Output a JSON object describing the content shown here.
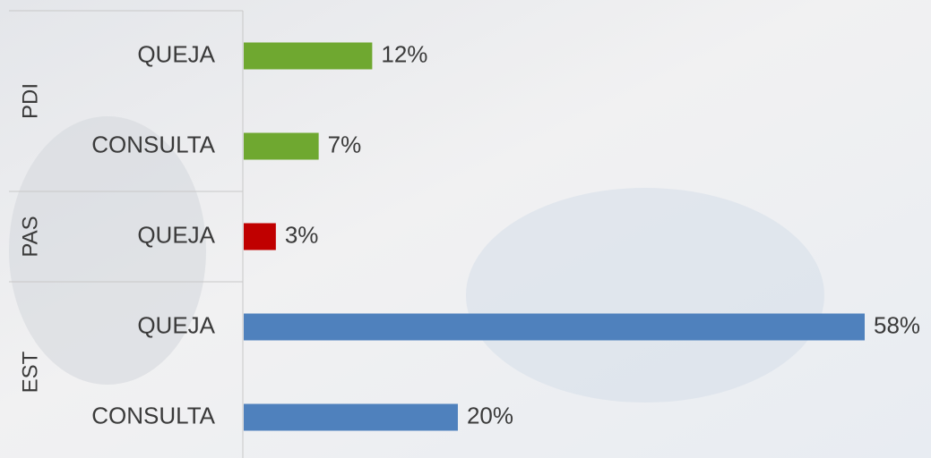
{
  "chart_data": {
    "type": "bar",
    "groups": [
      {
        "name": "PDI",
        "color": "#6fa830",
        "categories": [
          "QUEJA",
          "CONSULTA"
        ],
        "values": [
          12,
          7
        ],
        "value_labels": [
          "12%",
          "7%"
        ]
      },
      {
        "name": "PAS",
        "color": "#c00000",
        "categories": [
          "QUEJA"
        ],
        "values": [
          3
        ],
        "value_labels": [
          "3%"
        ]
      },
      {
        "name": "EST",
        "color": "#4f81bd",
        "categories": [
          "QUEJA",
          "CONSULTA"
        ],
        "values": [
          58,
          20
        ],
        "value_labels": [
          "58%",
          "20%"
        ]
      }
    ]
  }
}
